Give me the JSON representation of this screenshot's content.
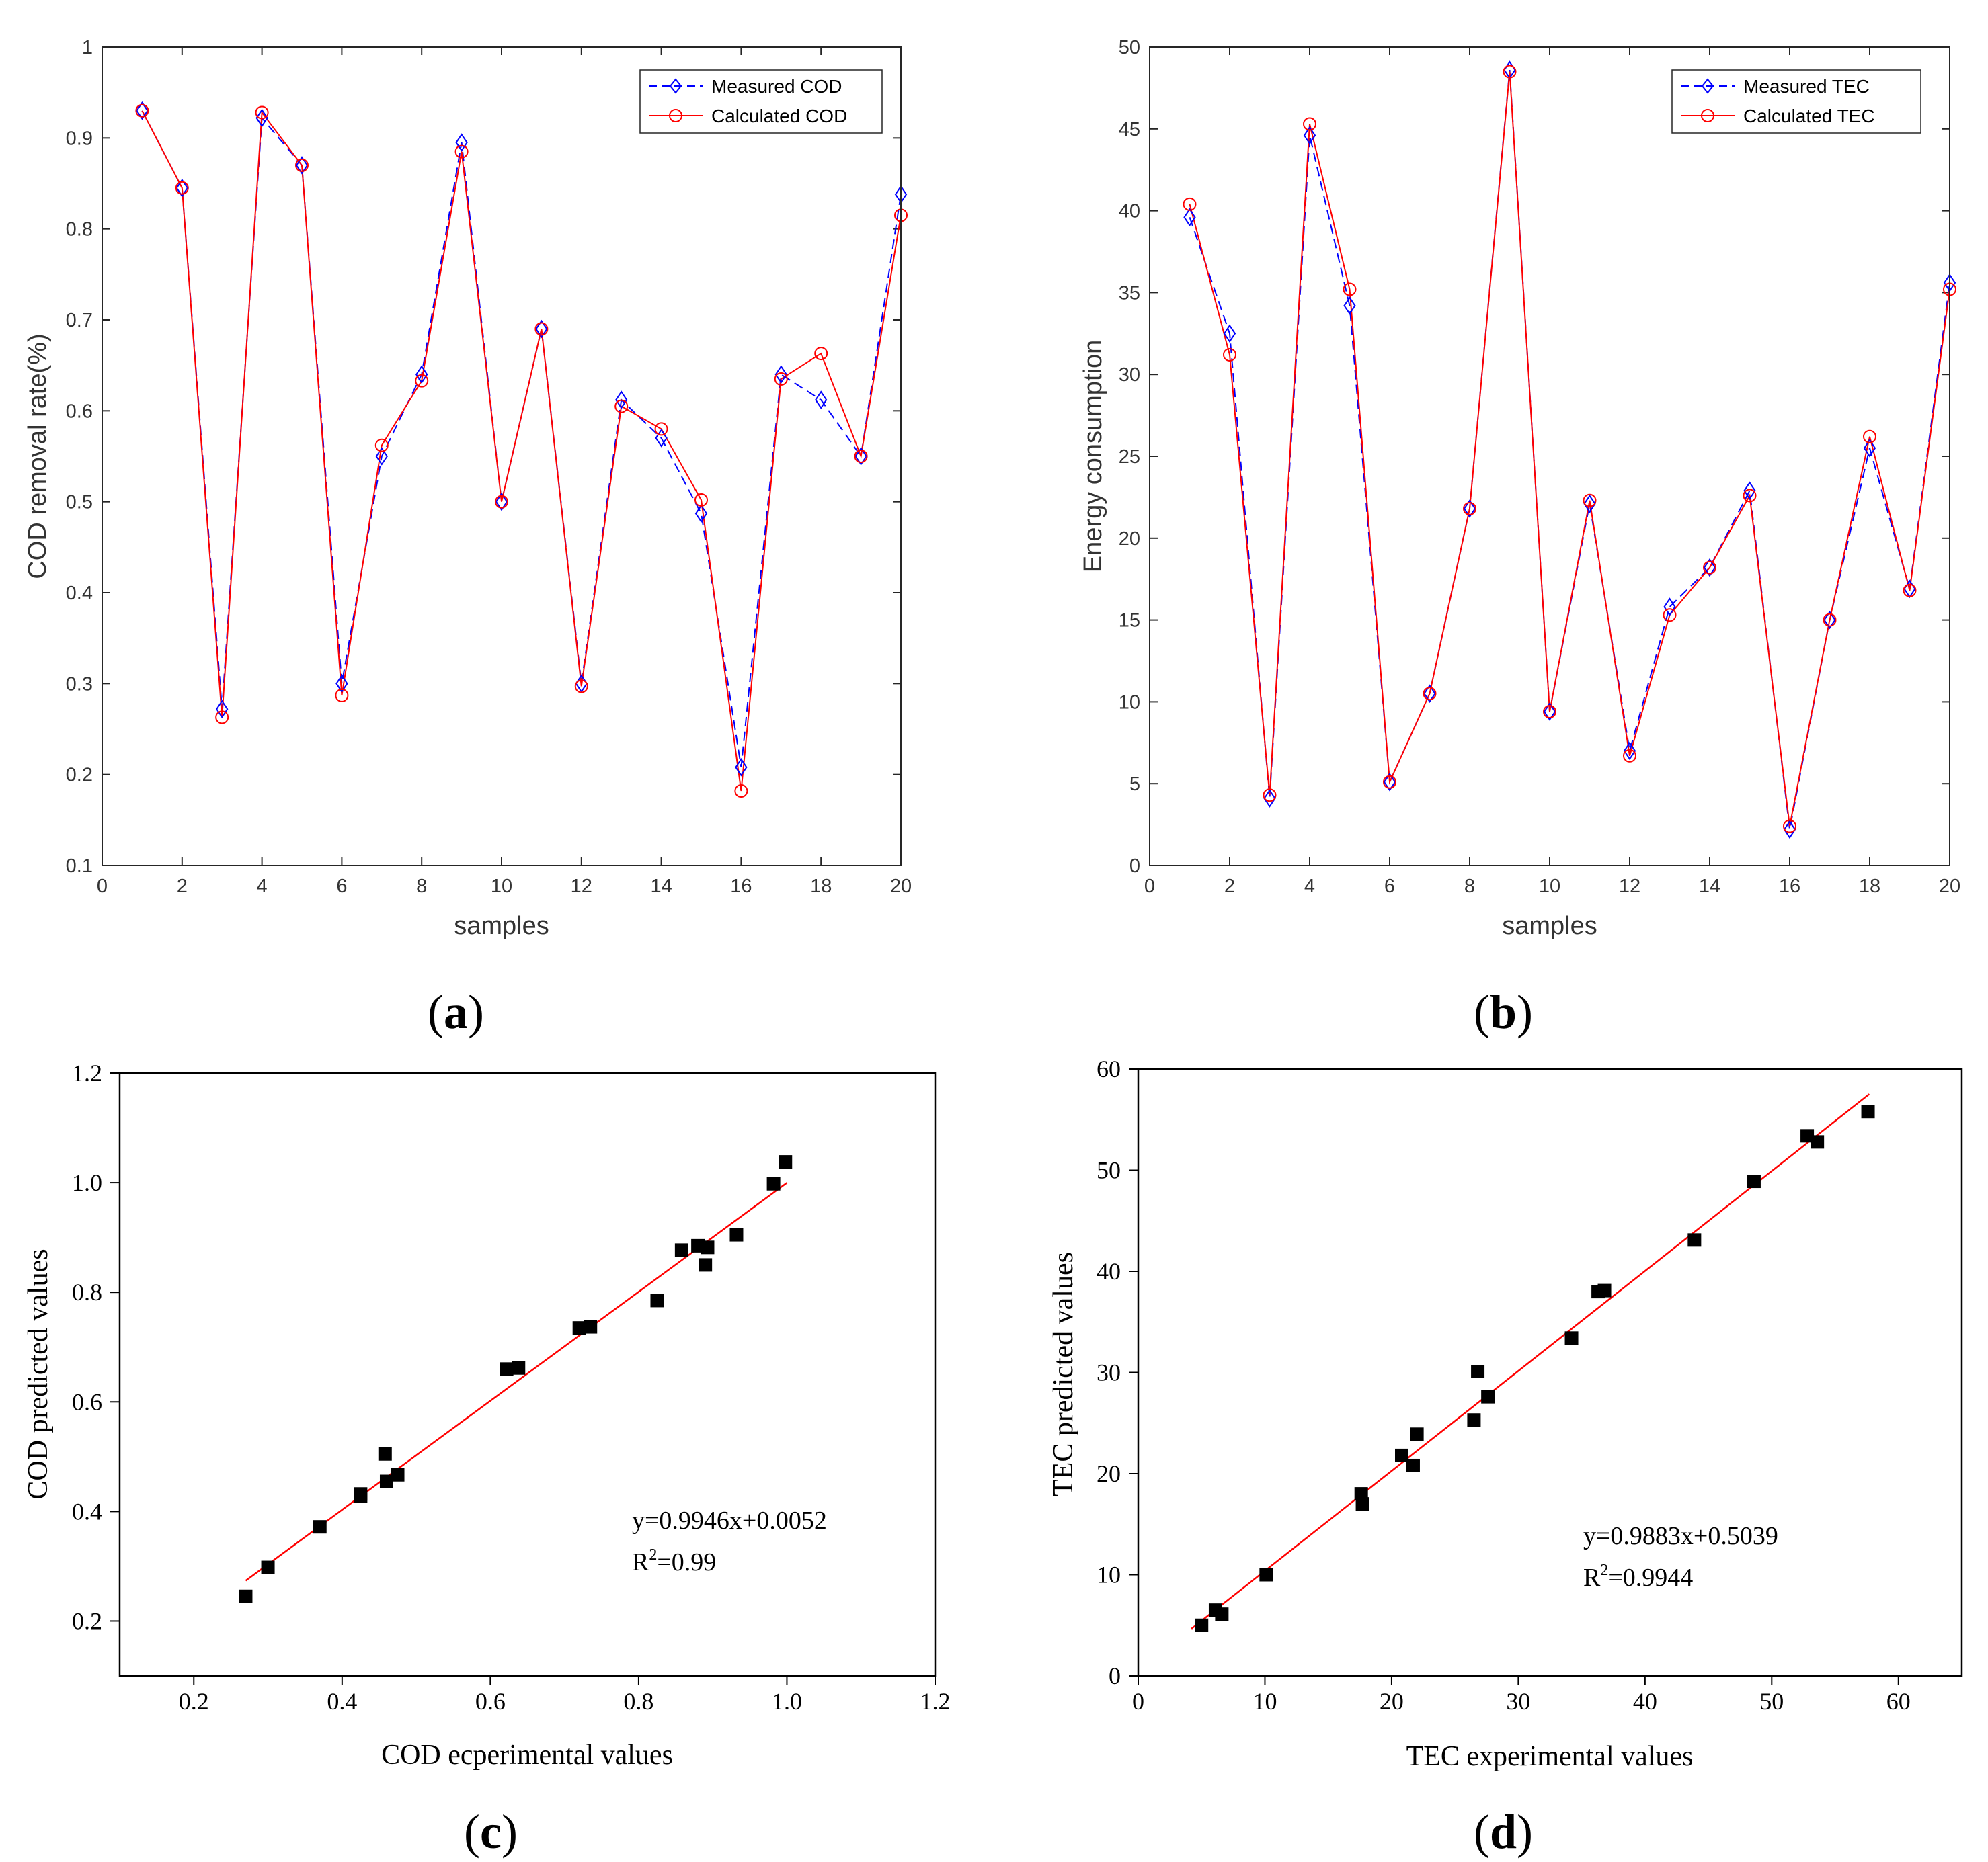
{
  "colors": {
    "measured": "#0000ff",
    "calculated": "#ff0000",
    "fit": "#ff0000",
    "points": "#000000"
  },
  "panels": {
    "a": "a",
    "b": "b",
    "c": "c",
    "d": "d"
  },
  "chart_data": [
    {
      "id": "a",
      "type": "line",
      "xlabel": "samples",
      "ylabel": "COD removal rate(%)",
      "xlim": [
        0,
        20
      ],
      "ylim": [
        0.1,
        1
      ],
      "xticks": [
        0,
        2,
        4,
        6,
        8,
        10,
        12,
        14,
        16,
        18,
        20
      ],
      "yticks": [
        0.1,
        0.2,
        0.3,
        0.4,
        0.5,
        0.6,
        0.7,
        0.8,
        0.9,
        1
      ],
      "legend_position": "top-right",
      "x": [
        1,
        2,
        3,
        4,
        5,
        6,
        7,
        8,
        9,
        10,
        11,
        12,
        13,
        14,
        15,
        16,
        17,
        18,
        19,
        20
      ],
      "series": [
        {
          "name": "Measured COD",
          "marker": "diamond",
          "style": "dashed",
          "values": [
            0.93,
            0.845,
            0.272,
            0.922,
            0.87,
            0.3,
            0.55,
            0.64,
            0.895,
            0.5,
            0.69,
            0.3,
            0.612,
            0.57,
            0.487,
            0.208,
            0.64,
            0.612,
            0.55,
            0.838
          ]
        },
        {
          "name": "Calculated COD",
          "marker": "circle",
          "style": "solid",
          "values": [
            0.93,
            0.845,
            0.263,
            0.928,
            0.87,
            0.287,
            0.562,
            0.633,
            0.885,
            0.5,
            0.69,
            0.297,
            0.605,
            0.58,
            0.502,
            0.182,
            0.635,
            0.663,
            0.55,
            0.815
          ]
        }
      ]
    },
    {
      "id": "b",
      "type": "line",
      "xlabel": "samples",
      "ylabel": "Energy consumption",
      "xlim": [
        0,
        20
      ],
      "ylim": [
        0,
        50
      ],
      "xticks": [
        0,
        2,
        4,
        6,
        8,
        10,
        12,
        14,
        16,
        18,
        20
      ],
      "yticks": [
        0,
        5,
        10,
        15,
        20,
        25,
        30,
        35,
        40,
        45,
        50
      ],
      "legend_position": "top-right",
      "x": [
        1,
        2,
        3,
        4,
        5,
        6,
        7,
        8,
        9,
        10,
        11,
        12,
        13,
        14,
        15,
        16,
        17,
        18,
        19,
        20
      ],
      "series": [
        {
          "name": "Measured TEC",
          "marker": "diamond",
          "style": "dashed",
          "values": [
            39.6,
            32.5,
            4.1,
            44.6,
            34.2,
            5.1,
            10.5,
            21.8,
            48.6,
            9.4,
            22.1,
            7.0,
            15.8,
            18.2,
            22.9,
            2.2,
            15.0,
            25.5,
            16.9,
            35.6
          ]
        },
        {
          "name": "Calculated TEC",
          "marker": "circle",
          "style": "solid",
          "values": [
            40.4,
            31.2,
            4.3,
            45.3,
            35.2,
            5.1,
            10.5,
            21.8,
            48.5,
            9.4,
            22.3,
            6.7,
            15.3,
            18.2,
            22.6,
            2.4,
            15.0,
            26.2,
            16.8,
            35.2
          ]
        }
      ]
    },
    {
      "id": "c",
      "type": "scatter",
      "xlabel": "COD ecperimental values",
      "ylabel": "COD predicted values",
      "xlim": [
        0.1,
        1.2
      ],
      "ylim": [
        0.1,
        1.2
      ],
      "xticks": [
        "0.2",
        "0.4",
        "0.6",
        "0.8",
        "1.0",
        "1.2"
      ],
      "yticks": [
        "0.2",
        "0.4",
        "0.6",
        "0.8",
        "1.0",
        "1.2"
      ],
      "equation": "y=0.9946x+0.0052",
      "r2_prefix": "R",
      "r2_sup": "2",
      "r2_value": "=0.99",
      "fit": {
        "slope": 0.9946,
        "intercept": 0.0052,
        "x_range": [
          0.27,
          1.0
        ]
      },
      "points": [
        [
          0.27,
          0.245
        ],
        [
          0.3,
          0.298
        ],
        [
          0.37,
          0.372
        ],
        [
          0.425,
          0.432
        ],
        [
          0.425,
          0.428
        ],
        [
          0.458,
          0.505
        ],
        [
          0.46,
          0.455
        ],
        [
          0.475,
          0.467
        ],
        [
          0.622,
          0.66
        ],
        [
          0.638,
          0.662
        ],
        [
          0.72,
          0.735
        ],
        [
          0.735,
          0.737
        ],
        [
          0.825,
          0.785
        ],
        [
          0.858,
          0.877
        ],
        [
          0.88,
          0.885
        ],
        [
          0.89,
          0.85
        ],
        [
          0.893,
          0.882
        ],
        [
          0.932,
          0.905
        ],
        [
          0.982,
          0.998
        ],
        [
          0.998,
          1.038
        ]
      ]
    },
    {
      "id": "d",
      "type": "scatter",
      "xlabel": "TEC experimental values",
      "ylabel": "TEC predicted values",
      "xlim": [
        0,
        65
      ],
      "ylim": [
        0,
        60
      ],
      "xticks": [
        0,
        10,
        20,
        30,
        40,
        50,
        60
      ],
      "yticks": [
        0,
        10,
        20,
        30,
        40,
        50,
        60
      ],
      "equation": "y=0.9883x+0.5039",
      "r2_prefix": "R",
      "r2_sup": "2",
      "r2_value": "=0.9944",
      "fit": {
        "slope": 0.9883,
        "intercept": 0.5039,
        "x_range": [
          4.2,
          57.7
        ]
      },
      "points": [
        [
          5.0,
          5.0
        ],
        [
          6.1,
          6.5
        ],
        [
          6.6,
          6.1
        ],
        [
          10.1,
          10.0
        ],
        [
          17.6,
          18.0
        ],
        [
          17.7,
          17.0
        ],
        [
          20.8,
          21.8
        ],
        [
          21.7,
          20.8
        ],
        [
          22.0,
          23.9
        ],
        [
          26.5,
          25.3
        ],
        [
          26.8,
          30.1
        ],
        [
          27.6,
          27.6
        ],
        [
          34.2,
          33.4
        ],
        [
          36.3,
          38.0
        ],
        [
          36.8,
          38.1
        ],
        [
          43.9,
          43.1
        ],
        [
          48.6,
          48.9
        ],
        [
          52.8,
          53.4
        ],
        [
          53.6,
          52.8
        ],
        [
          57.6,
          55.8
        ]
      ]
    }
  ]
}
